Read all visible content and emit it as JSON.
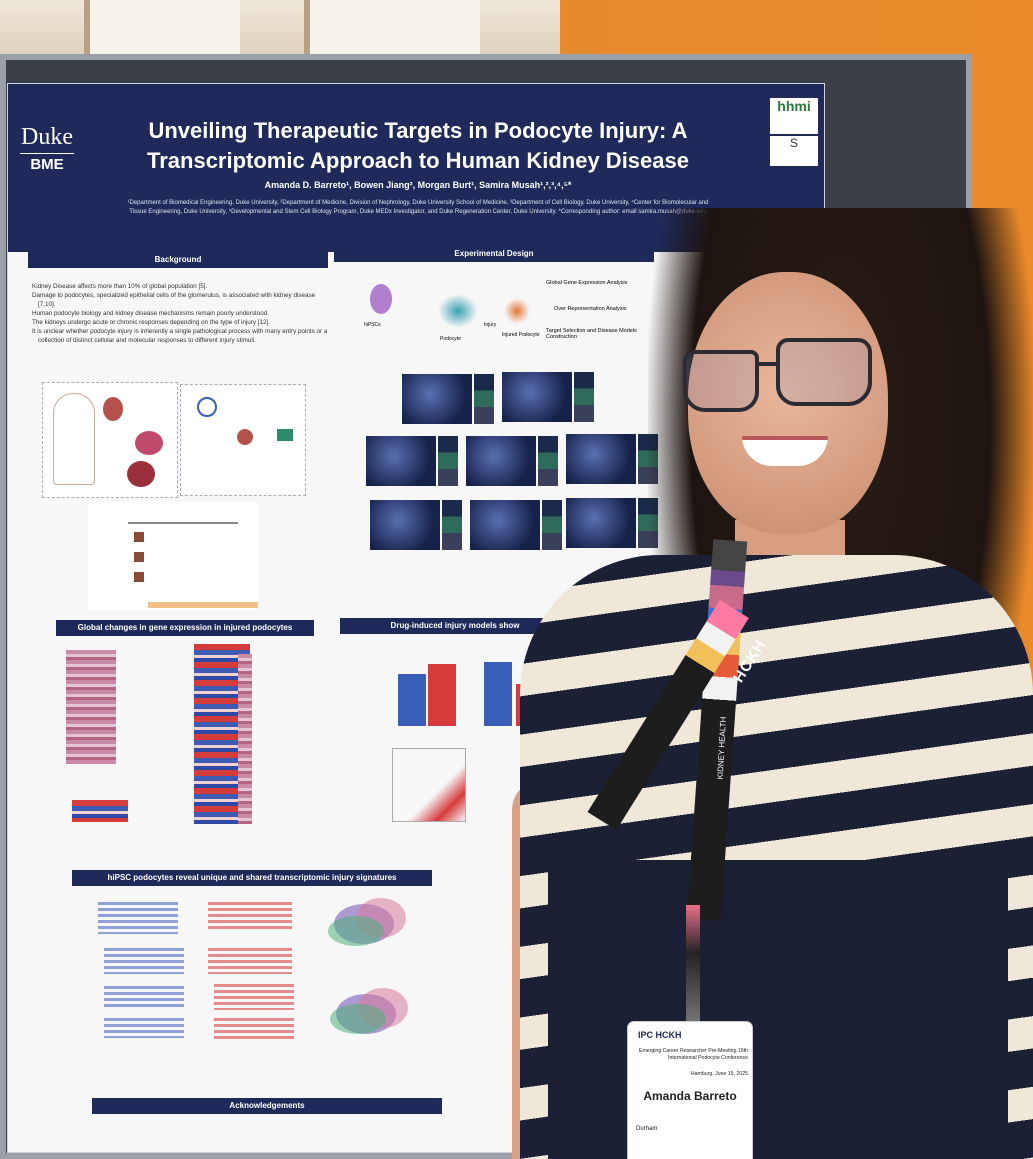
{
  "poster": {
    "institution_logo": {
      "word": "Duke",
      "sub": "BME"
    },
    "title": "Unveiling Therapeutic Targets in Podocyte Injury: A Transcriptomic Approach to Human Kidney Disease",
    "authors": "Amanda D. Barreto¹, Bowen Jiang², Morgan Burt¹, Samira Musah¹,²,³,⁴,⁵*",
    "affiliations": "¹Department of Biomedical Engineering, Duke University, ²Department of Medicine, Division of Nephrology, Duke University School of Medicine, ³Department of Cell Biology, Duke University, ⁴Center for Biomolecular and Tissue Engineering, Duke University, ⁵Developmental and Stem Cell Biology Program, Duke MEDx Investigator, and Duke Regeneration Center, Duke University. *Corresponding author: email samira.musah@duke.edu",
    "sponsor_logo": "hhmi",
    "sponsor_logo_2": "S",
    "sections": {
      "background": "Background",
      "experimental_design": "Experimental Design",
      "global_changes": "Global changes in gene expression in injured podocytes",
      "drug_induced": "Drug-induced injury models show",
      "signatures": "hiPSC podocytes reveal unique and shared transcriptomic injury signatures",
      "acknowledgements": "Acknowledgements"
    },
    "background_bullets": [
      "Kidney Disease affects more than 10% of global population [5].",
      "Damage to podocytes, specialized epithelial cells of the glomerulus, is associated with kidney disease [7,10].",
      "Human podocyte biology and kidney disease mechanisms remain poorly understood.",
      "The kidneys undergo acute or chronic responses depending on the type of injury [12].",
      "It is unclear whether podocyte injury is inherently a single pathological process with many entry points or a collection of distinct cellular and molecular responses to different injury stimuli."
    ],
    "design_labels": {
      "source": "hiPSCs",
      "podocyte": "Podocyte",
      "injury": "Injury",
      "injured": "Injured Podocyte",
      "out1": "Global Gene Expression Analysis",
      "out2": "Over Representation Analysis",
      "out3": "Target Selection and Disease Models Construction"
    }
  },
  "badge": {
    "logos": "IPC HCKH",
    "event": "Emerging Career Researcher Pre-Meeting 16th International Podocyte Conference",
    "date": "Hamburg, June 15, 2025",
    "name": "Amanda Barreto",
    "city": "Durham"
  },
  "lanyard": {
    "text": "HCKH",
    "text2": "KIDNEY HEALTH"
  },
  "colors": {
    "poster_navy": "#1f2a5a",
    "wall_orange": "#e9872f",
    "board_gray": "#3b3f47"
  }
}
